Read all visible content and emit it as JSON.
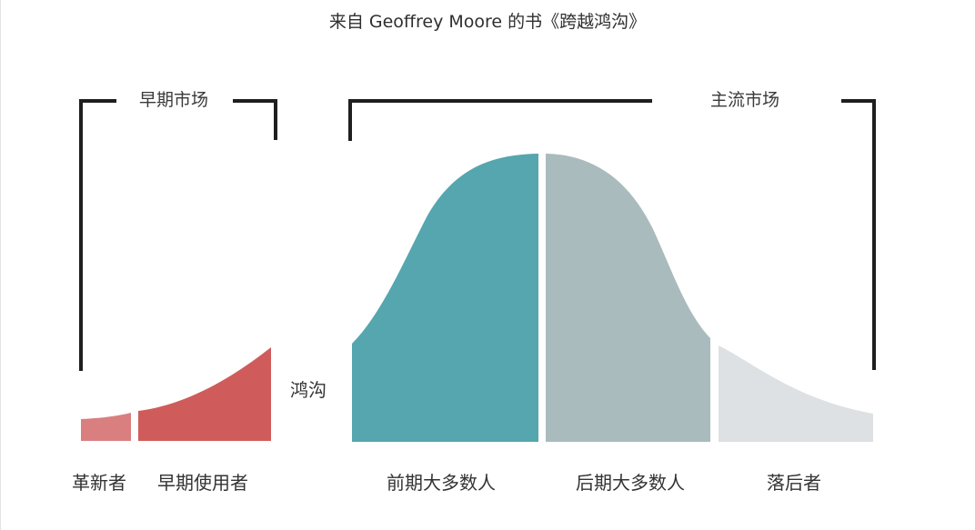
{
  "title": "来自 Geoffrey Moore 的书《跨越鸿沟》",
  "markets": {
    "early": "早期市场",
    "mainstream": "主流市场"
  },
  "chasm_label": "鸿沟",
  "segments": [
    {
      "label": "革新者",
      "color": "#d97f80"
    },
    {
      "label": "早期使用者",
      "color": "#cf5c5b"
    },
    {
      "label": "前期大多数人",
      "color": "#55a6ae"
    },
    {
      "label": "后期大多数人",
      "color": "#a9bbbd"
    },
    {
      "label": "落后者",
      "color": "#dde1e3"
    }
  ],
  "bracket_color": "#1f1f1f"
}
